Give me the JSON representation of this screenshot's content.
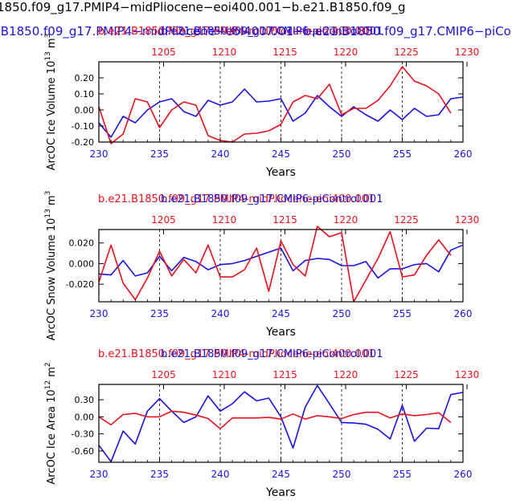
{
  "page": {
    "title": "1850.f09_g17.PMIP4−midPliocene−eoi400.001−b.e21.B1850.f09_g",
    "subtitle": ".B1850.f09_g17.PMIP4−midPliocene−eoi400.001−b.e21.B1850.f09_g17.CMIP6−piCont"
  },
  "colors": {
    "red": "#e8101a",
    "blue": "#1a12e0",
    "black": "#000000"
  },
  "chart_data": [
    {
      "type": "line",
      "ylabel": "ArcOC Ice Volume 10",
      "ylabel_exp": "13",
      "ylabel_unit": " m",
      "ylabel_unit_exp": "3",
      "xlabel": "Years",
      "xlim": [
        230,
        260
      ],
      "ylim": [
        -0.2,
        0.3
      ],
      "bottom_ticks": [
        "230",
        "235",
        "240",
        "245",
        "250",
        "255",
        "260"
      ],
      "top_ticks": [
        "1205",
        "1210",
        "1215",
        "1220",
        "1225",
        "1230"
      ],
      "yticks": [
        0.2,
        0.1,
        0.0,
        -0.1,
        -0.2
      ],
      "ytick_labels": [
        "0.20",
        "0.10",
        "0.00",
        "-0.10",
        "-0.20"
      ],
      "legend": [
        {
          "text": "b.e21.B1850.f09_g17.PMIP4-midPliocene-eoi400.001",
          "color": "red"
        },
        {
          "text": "b.e21.B1850.f09_g17.CMIP6-piControl.001",
          "color": "blue"
        }
      ],
      "series": [
        {
          "name": "blue",
          "color": "blue",
          "x": [
            230,
            231,
            232,
            233,
            234,
            235,
            236,
            237,
            238,
            239,
            240,
            241,
            242,
            243,
            244,
            245,
            246,
            247,
            248,
            249,
            250,
            251,
            252,
            253,
            254,
            255,
            256,
            257,
            258,
            259,
            260
          ],
          "values": [
            -0.08,
            -0.17,
            -0.04,
            -0.08,
            0.0,
            0.05,
            0.07,
            -0.01,
            -0.04,
            0.06,
            0.03,
            0.05,
            0.13,
            0.05,
            0.055,
            0.07,
            -0.07,
            -0.02,
            0.09,
            0.02,
            -0.04,
            0.02,
            -0.03,
            -0.07,
            0.0,
            -0.06,
            0.01,
            -0.04,
            -0.03,
            0.07,
            0.08
          ]
        },
        {
          "name": "red",
          "color": "red",
          "x": [
            230,
            231,
            232,
            233,
            234,
            235,
            236,
            237,
            238,
            239,
            240,
            241,
            242,
            243,
            244,
            245,
            246,
            247,
            248,
            249,
            250,
            251,
            252,
            253,
            254,
            255,
            256,
            257,
            258,
            259
          ],
          "values": [
            0.02,
            -0.21,
            -0.15,
            0.07,
            0.05,
            -0.11,
            0.0,
            0.05,
            0.03,
            -0.16,
            -0.19,
            -0.2,
            -0.15,
            -0.145,
            -0.13,
            -0.09,
            0.05,
            0.09,
            0.07,
            0.16,
            -0.03,
            0.01,
            0.01,
            0.06,
            0.15,
            0.27,
            0.18,
            0.15,
            0.1,
            -0.02
          ]
        }
      ]
    },
    {
      "type": "line",
      "ylabel": "ArcOC Snow Volume 10",
      "ylabel_exp": "13",
      "ylabel_unit": " m",
      "ylabel_unit_exp": "3",
      "xlabel": "Years",
      "xlim": [
        230,
        260
      ],
      "ylim": [
        -0.037,
        0.033
      ],
      "bottom_ticks": [
        "230",
        "235",
        "240",
        "245",
        "250",
        "255",
        "260"
      ],
      "top_ticks": [
        "1205",
        "1210",
        "1215",
        "1220",
        "1225",
        "1230"
      ],
      "yticks": [
        0.02,
        0.0,
        -0.02
      ],
      "ytick_labels": [
        "0.020",
        "0.000",
        "-0.020"
      ],
      "legend": [
        {
          "text": "b.e21.B1850.f09_g17.PMIP4-midPliocene-eoi400.001",
          "color": "red"
        },
        {
          "text": "b.e21.B1850.f09_g17.CMIP6-piControl.001",
          "color": "blue"
        }
      ],
      "series": [
        {
          "name": "blue",
          "color": "blue",
          "x": [
            230,
            231,
            232,
            233,
            234,
            235,
            236,
            237,
            238,
            239,
            240,
            241,
            242,
            243,
            244,
            245,
            246,
            247,
            248,
            249,
            250,
            251,
            252,
            253,
            254,
            255,
            256,
            257,
            258,
            259,
            260
          ],
          "values": [
            -0.01,
            -0.011,
            0.003,
            -0.012,
            -0.009,
            0.007,
            -0.007,
            0.006,
            0.002,
            -0.006,
            -0.001,
            0.0,
            0.003,
            0.007,
            0.011,
            0.015,
            -0.007,
            0.003,
            0.005,
            0.004,
            -0.002,
            -0.002,
            0.002,
            -0.014,
            -0.005,
            -0.005,
            -0.001,
            0.0,
            -0.008,
            0.013,
            0.018
          ]
        },
        {
          "name": "red",
          "color": "red",
          "x": [
            230,
            231,
            232,
            233,
            234,
            235,
            236,
            237,
            238,
            239,
            240,
            241,
            242,
            243,
            244,
            245,
            246,
            247,
            248,
            249,
            250,
            251,
            252,
            253,
            254,
            255,
            256,
            257,
            258,
            259
          ],
          "values": [
            -0.018,
            0.018,
            -0.019,
            -0.035,
            -0.014,
            0.012,
            -0.012,
            0.004,
            -0.009,
            0.018,
            -0.013,
            -0.013,
            -0.006,
            0.015,
            -0.027,
            0.022,
            -0.001,
            -0.012,
            0.036,
            0.026,
            0.03,
            -0.037,
            -0.016,
            0.005,
            0.031,
            -0.013,
            -0.011,
            0.008,
            0.023,
            0.008
          ]
        }
      ]
    },
    {
      "type": "line",
      "ylabel": "ArcOC Ice Area 10",
      "ylabel_exp": "12",
      "ylabel_unit": " m",
      "ylabel_unit_exp": "2",
      "xlabel": "Years",
      "xlim": [
        230,
        260
      ],
      "ylim": [
        -0.8,
        0.57
      ],
      "bottom_ticks": [
        "230",
        "235",
        "240",
        "245",
        "250",
        "255",
        "260"
      ],
      "top_ticks": [
        "1205",
        "1210",
        "1215",
        "1220",
        "1225",
        "1230"
      ],
      "yticks": [
        0.3,
        0.0,
        -0.3,
        -0.6
      ],
      "ytick_labels": [
        "0.30",
        "0.00",
        "-0.30",
        "-0.60"
      ],
      "legend": [
        {
          "text": "b.e21.B1850.f09_g17.PMIP4-midPliocene-eoi400.001",
          "color": "red"
        },
        {
          "text": "b.e21.B1850.f09_g17.CMIP6-piControl.001",
          "color": "blue"
        }
      ],
      "series": [
        {
          "name": "blue",
          "color": "blue",
          "x": [
            230,
            231,
            232,
            233,
            234,
            235,
            236,
            237,
            238,
            239,
            240,
            241,
            242,
            243,
            244,
            245,
            246,
            247,
            248,
            249,
            250,
            251,
            252,
            253,
            254,
            255,
            256,
            257,
            258,
            259,
            260
          ],
          "values": [
            -0.5,
            -0.79,
            -0.25,
            -0.48,
            0.1,
            0.32,
            0.1,
            -0.1,
            0.0,
            0.37,
            0.1,
            0.23,
            0.44,
            0.28,
            0.33,
            0.0,
            -0.55,
            0.17,
            0.55,
            0.23,
            -0.1,
            -0.11,
            -0.13,
            -0.22,
            -0.39,
            0.2,
            -0.43,
            -0.2,
            -0.21,
            0.39,
            0.43
          ]
        },
        {
          "name": "red",
          "color": "red",
          "x": [
            230,
            231,
            232,
            233,
            234,
            235,
            236,
            237,
            238,
            239,
            240,
            241,
            242,
            243,
            244,
            245,
            246,
            247,
            248,
            249,
            250,
            251,
            252,
            253,
            254,
            255,
            256,
            257,
            258,
            259
          ],
          "values": [
            0.0,
            -0.14,
            0.04,
            0.06,
            0.0,
            0.0,
            0.1,
            0.08,
            0.03,
            -0.03,
            -0.21,
            -0.02,
            -0.02,
            -0.02,
            -0.01,
            -0.04,
            0.05,
            -0.04,
            0.02,
            0.0,
            -0.03,
            0.04,
            0.08,
            0.08,
            -0.02,
            0.05,
            0.02,
            0.04,
            0.07,
            -0.1
          ]
        }
      ]
    }
  ]
}
